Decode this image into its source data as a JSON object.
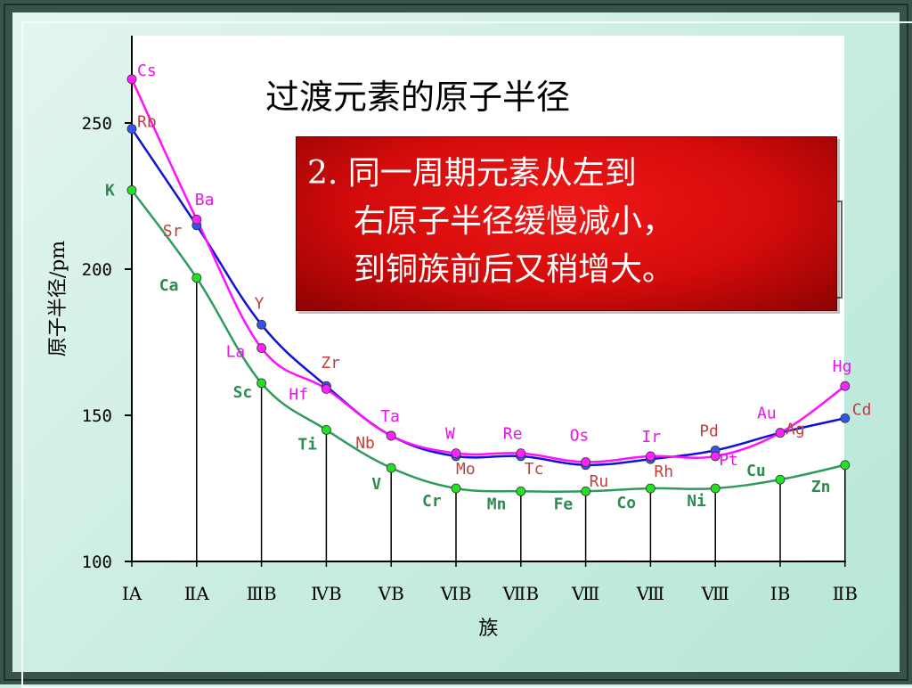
{
  "chart_data": {
    "type": "line",
    "title": "过渡元素的原子半径",
    "xlabel": "族",
    "ylabel": "原子半径/pm",
    "categories": [
      "ⅠA",
      "ⅡA",
      "ⅢB",
      "ⅣB",
      "ⅤB",
      "ⅥB",
      "ⅦB",
      "Ⅷ",
      "Ⅷ",
      "Ⅷ",
      "ⅠB",
      "ⅡB"
    ],
    "ylim": [
      100,
      250
    ],
    "yticks": [
      100,
      150,
      200,
      250
    ],
    "grid": false,
    "series": [
      {
        "period": 4,
        "color": "#2e9b5c",
        "marker_color": "#22e022",
        "values": [
          227,
          197,
          161,
          145,
          132,
          125,
          124,
          124,
          125,
          125,
          128,
          133
        ],
        "labels": [
          "K",
          "Ca",
          "Sc",
          "Ti",
          "V",
          "Cr",
          "Mn",
          "Fe",
          "Co",
          "Ni",
          "Cu",
          "Zn"
        ]
      },
      {
        "period": 5,
        "color": "#1010d8",
        "marker_color": "#3355ee",
        "values": [
          248,
          215,
          181,
          160,
          143,
          136,
          136,
          133,
          135,
          138,
          144,
          149
        ],
        "labels": [
          "Rb",
          "Sr",
          "Y",
          "Zr",
          "Nb",
          "Mo",
          "Tc",
          "Ru",
          "Rh",
          "Pd",
          "Ag",
          "Cd"
        ]
      },
      {
        "period": 6,
        "color": "#ff10ff",
        "marker_color": "#ff22ff",
        "values": [
          265,
          217,
          173,
          159,
          143,
          137,
          137,
          134,
          136,
          136,
          144,
          160
        ],
        "labels": [
          "Cs",
          "Ba",
          "La",
          "Hf",
          "Ta",
          "W",
          "Re",
          "Os",
          "Ir",
          "Pt",
          "Au",
          "Hg"
        ]
      }
    ]
  },
  "note": {
    "line1": "2. 同一周期元素从左到",
    "line2": "右原子半径缓慢减小，",
    "line3": "到铜族前后又稍增大。"
  }
}
